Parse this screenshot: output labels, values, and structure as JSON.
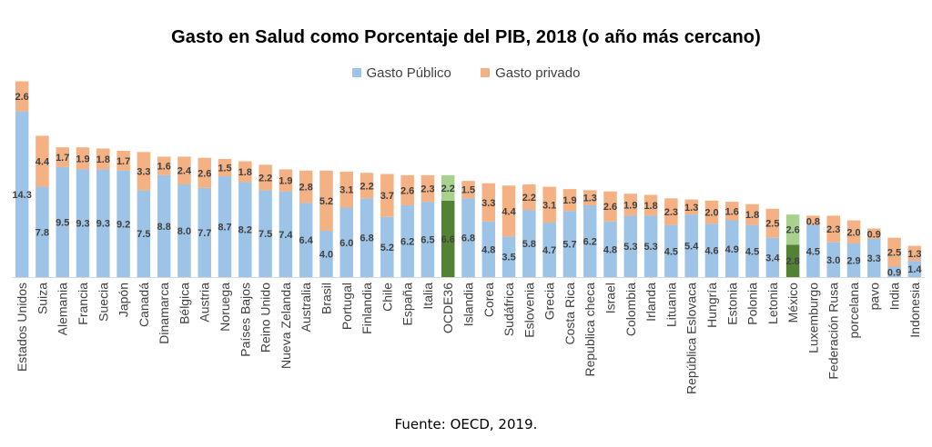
{
  "chart_data": {
    "type": "bar",
    "stacked": true,
    "title": "Gasto en Salud como Porcentaje del PIB, 2018 (o año más cercano)",
    "source": "Fuente: OECD, 2019.",
    "legend_position": "top",
    "ylim": [
      0,
      17
    ],
    "colors": {
      "publico": "#9dc3e6",
      "privado": "#f4b183",
      "publico_highlight": "#548235",
      "privado_highlight": "#a9d18e",
      "label": "#404040"
    },
    "highlight": [
      "OCDE36",
      "México"
    ],
    "categories": [
      "Estados Unidos",
      "Suiza",
      "Alemania",
      "Francia",
      "Suecia",
      "Japón",
      "Canadá",
      "Dinamarca",
      "Bélgica",
      "Austria",
      "Noruega",
      "Países Bajos",
      "Reino Unido",
      "Nueva Zelanda",
      "Australia",
      "Brasil",
      "Portugal",
      "Finlandia",
      "Chile",
      "España",
      "Italia",
      "OCDE36",
      "Islandia",
      "Corea",
      "Sudáfrica",
      "Eslovenia",
      "Grecia",
      "Costa Rica",
      "Republica checa",
      "Israel",
      "Colombia",
      "Irlanda",
      "Lituania",
      "República Eslovaca",
      "Hungría",
      "Estonia",
      "Polonia",
      "Letonia",
      "México",
      "Luxemburgo",
      "Federación Rusa",
      "porcelana",
      "pavo",
      "India",
      "Indonesia"
    ],
    "series": [
      {
        "name": "Gasto Público",
        "values": [
          14.3,
          7.8,
          9.5,
          9.3,
          9.3,
          9.2,
          7.5,
          8.8,
          8.0,
          7.7,
          8.7,
          8.2,
          7.5,
          7.4,
          6.4,
          4.0,
          6.0,
          6.8,
          5.2,
          6.2,
          6.5,
          6.6,
          6.8,
          4.8,
          3.5,
          5.8,
          4.7,
          5.7,
          6.2,
          4.8,
          5.3,
          5.3,
          4.5,
          5.4,
          4.6,
          4.9,
          4.5,
          3.4,
          2.8,
          4.5,
          3.0,
          2.9,
          3.3,
          0.9,
          1.4
        ]
      },
      {
        "name": "Gasto privado",
        "values": [
          2.6,
          4.4,
          1.7,
          1.9,
          1.8,
          1.7,
          3.3,
          1.6,
          2.4,
          2.6,
          1.5,
          1.8,
          2.2,
          1.9,
          2.8,
          5.2,
          3.1,
          2.2,
          3.7,
          2.6,
          2.3,
          2.2,
          1.5,
          3.3,
          4.4,
          2.2,
          3.1,
          1.9,
          1.3,
          2.6,
          1.9,
          1.8,
          2.3,
          1.3,
          2.0,
          1.6,
          1.8,
          2.5,
          2.6,
          0.8,
          2.3,
          2.0,
          0.9,
          2.5,
          1.3
        ]
      }
    ]
  }
}
